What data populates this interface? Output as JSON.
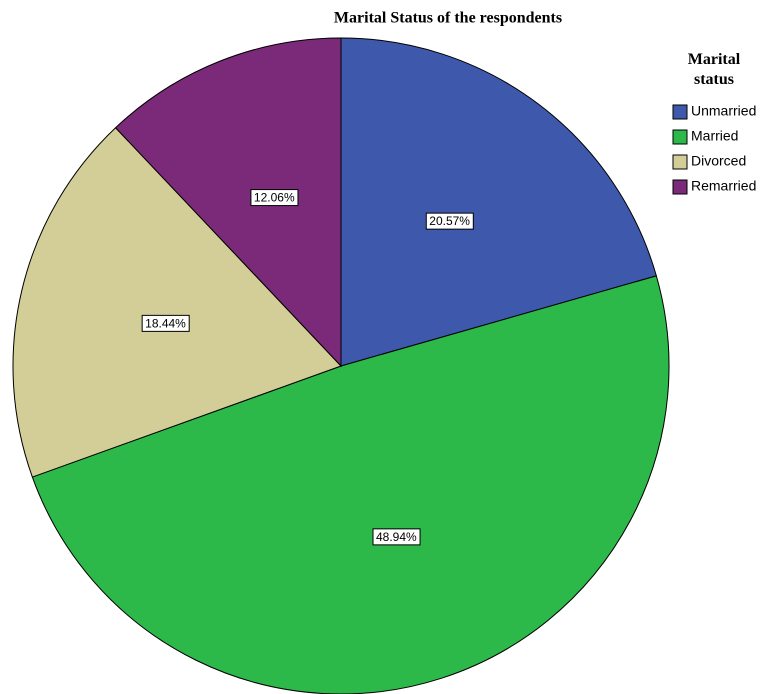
{
  "chart_data": {
    "type": "pie",
    "title": "Marital Status of the respondents",
    "legend_title": "Marital status",
    "categories": [
      "Unmarried",
      "Married",
      "Divorced",
      "Remarried"
    ],
    "values": [
      20.57,
      48.94,
      18.44,
      12.06
    ],
    "value_labels": [
      "20.57%",
      "48.94%",
      "18.44%",
      "12.06%"
    ],
    "colors": [
      "#3e58ac",
      "#2db84a",
      "#d3ce97",
      "#7b2a7a"
    ]
  }
}
